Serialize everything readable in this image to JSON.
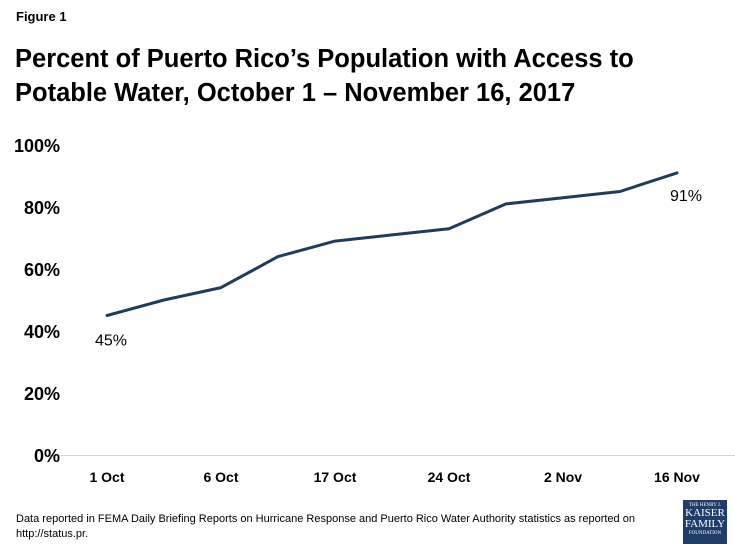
{
  "figure_label": "Figure 1",
  "title": "Percent of Puerto Rico’s Population with Access to Potable Water, October 1 – November 16, 2017",
  "footnote": "Data reported  in FEMA Daily Briefing Reports on Hurricane Response and Puerto Rico Water Authority  statistics as reported on http://status.pr.",
  "logo": {
    "line1": "THE HENRY J.",
    "line2": "KAISER",
    "line3": "FAMILY",
    "line4": "FOUNDATION"
  },
  "colors": {
    "line": "#1f3c5e",
    "logo": "#1f3c6b"
  },
  "chart_data": {
    "type": "line",
    "title": "Percent of Puerto Rico’s Population with Access to Potable Water, October 1 – November 16, 2017",
    "x_tick_labels": [
      "1 Oct",
      "6 Oct",
      "17 Oct",
      "24 Oct",
      "2 Nov",
      "16 Nov"
    ],
    "y_tick_labels": [
      "0%",
      "20%",
      "40%",
      "60%",
      "80%",
      "100%"
    ],
    "ylim": [
      0,
      100
    ],
    "grid": false,
    "series": [
      {
        "values": [
          45,
          50,
          54,
          64,
          69,
          71,
          73,
          81,
          83,
          85,
          91
        ]
      }
    ],
    "data_labels": [
      {
        "index": 0,
        "text": "45%"
      },
      {
        "index": 10,
        "text": "91%"
      }
    ]
  }
}
